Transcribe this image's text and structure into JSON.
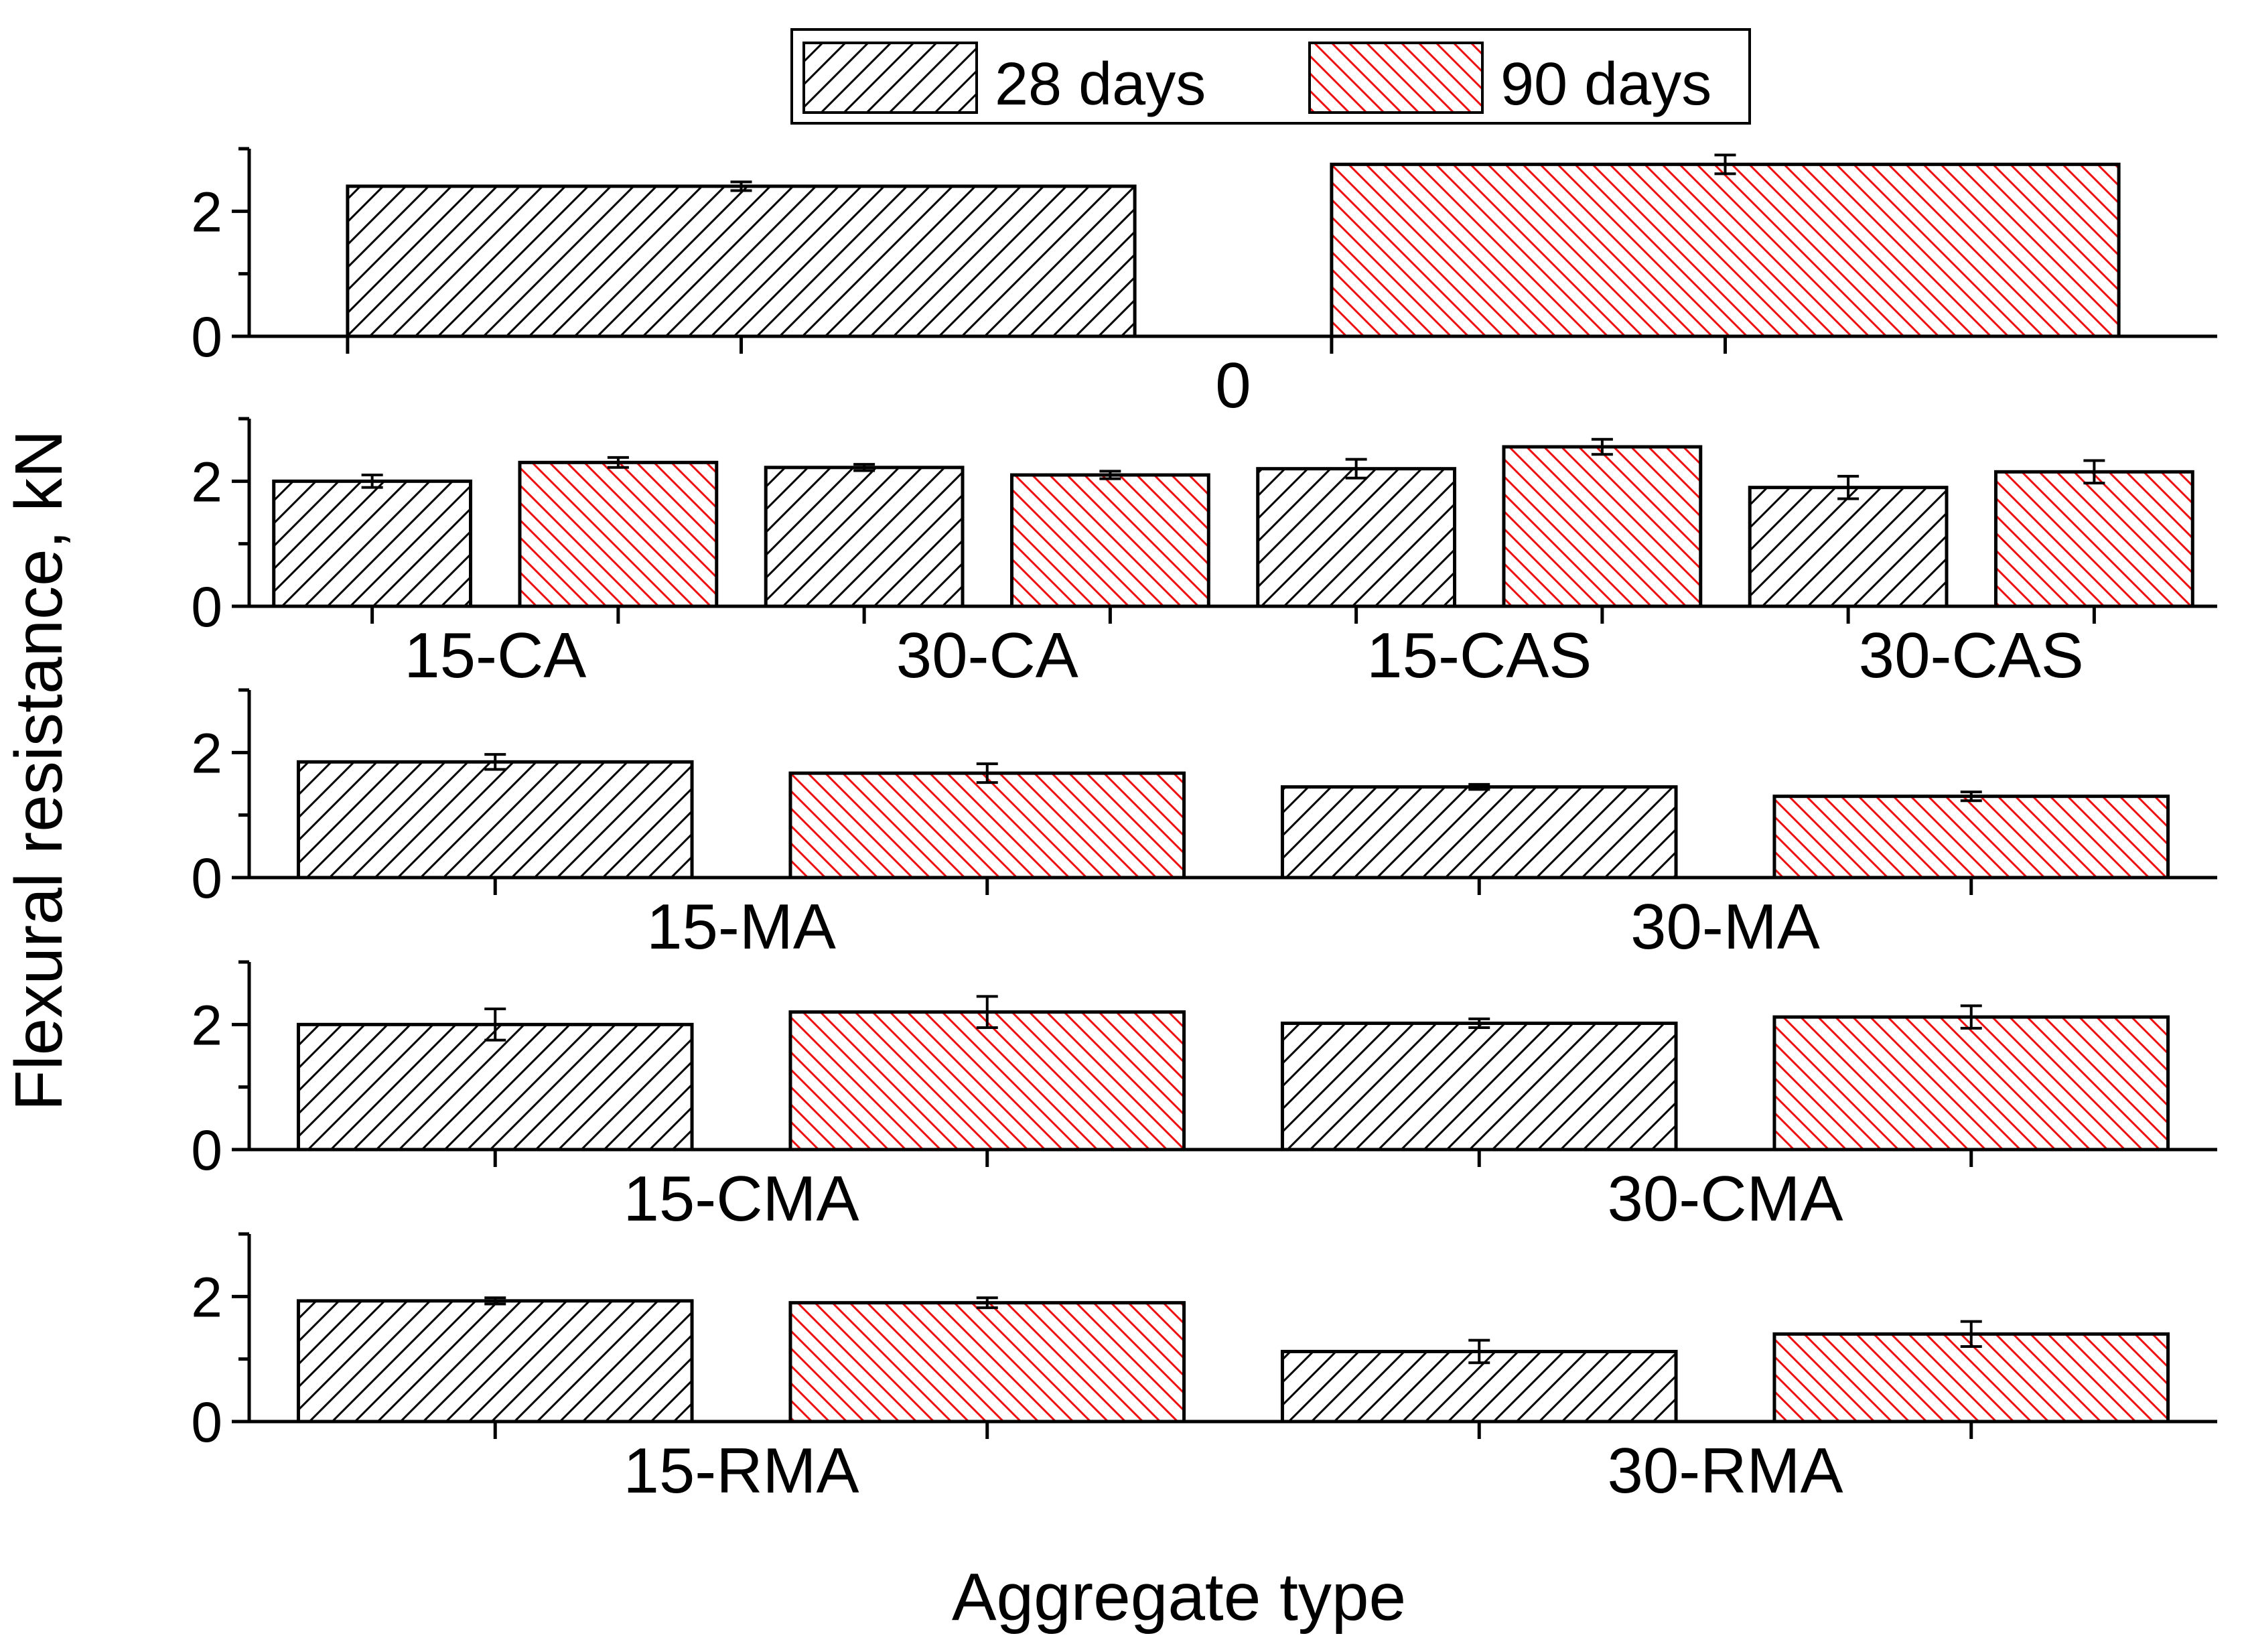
{
  "chart_data": {
    "type": "bar",
    "ylabel": "Flexural resistance, kN",
    "xlabel": "Aggregate type",
    "legend": {
      "position": "top-center",
      "entries": [
        {
          "name": "28 days",
          "color": "#000000",
          "hatch": "forward"
        },
        {
          "name": "90 days",
          "color": "#ee1111",
          "hatch": "backward"
        }
      ]
    },
    "ylim": [
      0,
      3
    ],
    "yticks": [
      0,
      2
    ],
    "panels": [
      {
        "categories": [
          "0"
        ],
        "series": [
          {
            "name": "28 days",
            "values": [
              2.4
            ],
            "errors": [
              0.07
            ]
          },
          {
            "name": "90 days",
            "values": [
              2.75
            ],
            "errors": [
              0.15
            ]
          }
        ]
      },
      {
        "categories": [
          "15-CA",
          "30-CA",
          "15-CAS",
          "30-CAS"
        ],
        "series": [
          {
            "name": "28 days",
            "values": [
              2.0,
              2.22,
              2.2,
              1.9
            ],
            "errors": [
              0.1,
              0.05,
              0.15,
              0.18
            ]
          },
          {
            "name": "90 days",
            "values": [
              2.3,
              2.1,
              2.55,
              2.15
            ],
            "errors": [
              0.08,
              0.06,
              0.12,
              0.18
            ]
          }
        ]
      },
      {
        "categories": [
          "15-MA",
          "30-MA"
        ],
        "series": [
          {
            "name": "28 days",
            "values": [
              1.85,
              1.45
            ],
            "errors": [
              0.12,
              0.04
            ]
          },
          {
            "name": "90 days",
            "values": [
              1.67,
              1.3
            ],
            "errors": [
              0.15,
              0.07
            ]
          }
        ]
      },
      {
        "categories": [
          "15-CMA",
          "30-CMA"
        ],
        "series": [
          {
            "name": "28 days",
            "values": [
              2.0,
              2.02
            ],
            "errors": [
              0.25,
              0.07
            ]
          },
          {
            "name": "90 days",
            "values": [
              2.2,
              2.12
            ],
            "errors": [
              0.25,
              0.18
            ]
          }
        ]
      },
      {
        "categories": [
          "15-RMA",
          "30-RMA"
        ],
        "series": [
          {
            "name": "28 days",
            "values": [
              1.93,
              1.12
            ],
            "errors": [
              0.05,
              0.18
            ]
          },
          {
            "name": "90 days",
            "values": [
              1.9,
              1.4
            ],
            "errors": [
              0.08,
              0.2
            ]
          }
        ]
      }
    ]
  }
}
